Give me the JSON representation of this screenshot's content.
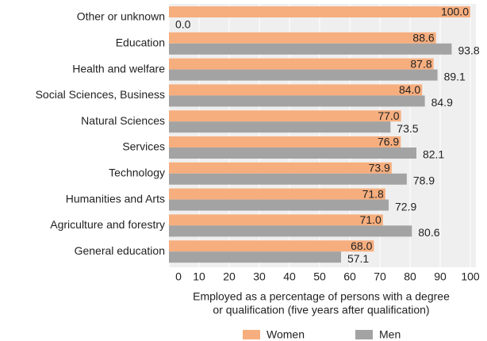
{
  "chart_data": {
    "type": "hbar",
    "categories": [
      "Other or unknown",
      "Education",
      "Health and welfare",
      "Social Sciences, Business",
      "Natural Sciences",
      "Services",
      "Technology",
      "Humanities and Arts",
      "Agriculture and forestry",
      "General education"
    ],
    "series": [
      {
        "name": "Women",
        "color": "#f7ae7e",
        "values": [
          100.0,
          88.6,
          87.8,
          84.0,
          77.0,
          76.9,
          73.9,
          71.8,
          71.0,
          68.0
        ],
        "value_labels": [
          "100.0",
          "88.6",
          "87.8",
          "84.0",
          "77.0",
          "76.9",
          "73.9",
          "71.8",
          "71.0",
          "68.0"
        ]
      },
      {
        "name": "Men",
        "color": "#a3a3a3",
        "values": [
          0.0,
          93.8,
          89.1,
          84.9,
          73.5,
          82.1,
          78.9,
          72.9,
          80.6,
          57.1
        ],
        "value_labels": [
          "0.0",
          "93.8",
          "89.1",
          "84.9",
          "73.5",
          "82.1",
          "78.9",
          "72.9",
          "80.6",
          "57.1"
        ]
      }
    ],
    "xlabel": [
      "Employed as a percentage of persons with a degree",
      "or qualification (five years after qualification)"
    ],
    "xlim": [
      0,
      100
    ],
    "xticks": [
      0,
      10,
      20,
      30,
      40,
      50,
      60,
      70,
      80,
      90,
      100
    ],
    "grid": true,
    "legend": "bottom"
  }
}
